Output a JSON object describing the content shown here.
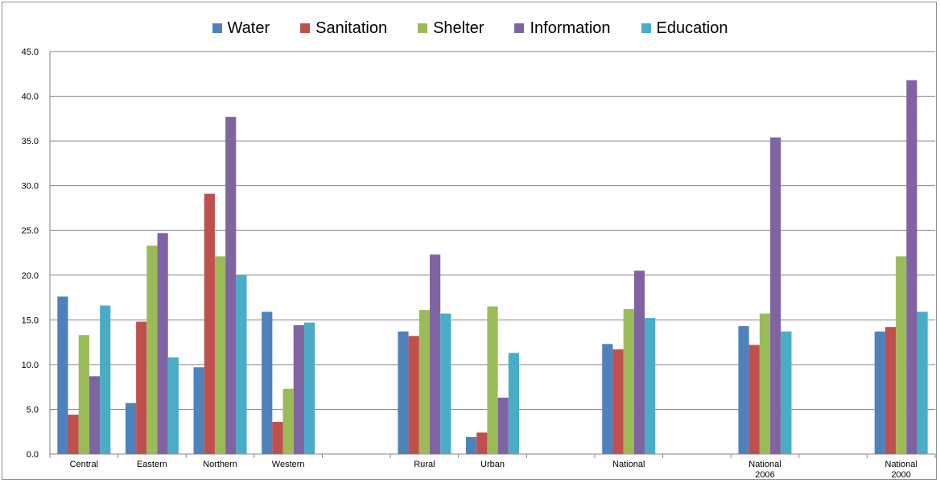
{
  "chart_data": {
    "type": "bar",
    "title": "",
    "xlabel": "",
    "ylabel": "",
    "ylim": [
      0,
      45
    ],
    "yticks": [
      "0.0",
      "5.0",
      "10.0",
      "15.0",
      "20.0",
      "25.0",
      "30.0",
      "35.0",
      "40.0",
      "45.0"
    ],
    "grid": true,
    "legend_position": "top",
    "categories": [
      [
        "Central"
      ],
      [
        "Eastern"
      ],
      [
        "Northern"
      ],
      [
        "Western"
      ],
      [
        ""
      ],
      [
        "Rural"
      ],
      [
        "Urban"
      ],
      [
        ""
      ],
      [
        "National"
      ],
      [
        ""
      ],
      [
        "National",
        "2006"
      ],
      [
        ""
      ],
      [
        "National",
        "2000"
      ]
    ],
    "series": [
      {
        "name": "Water",
        "color": "#4f81bd",
        "values": [
          17.6,
          5.7,
          9.7,
          15.9,
          null,
          13.7,
          1.9,
          null,
          12.3,
          null,
          14.3,
          null,
          13.7
        ]
      },
      {
        "name": "Sanitation",
        "color": "#c0504d",
        "values": [
          4.4,
          14.8,
          29.1,
          3.6,
          null,
          13.2,
          2.4,
          null,
          11.7,
          null,
          12.2,
          null,
          14.2
        ]
      },
      {
        "name": "Shelter",
        "color": "#9bbb59",
        "values": [
          13.3,
          23.3,
          22.1,
          7.3,
          null,
          16.1,
          16.5,
          null,
          16.2,
          null,
          15.7,
          null,
          22.1
        ]
      },
      {
        "name": "Information",
        "color": "#8064a2",
        "values": [
          8.7,
          24.7,
          37.7,
          14.4,
          null,
          22.3,
          6.3,
          null,
          20.5,
          null,
          35.4,
          null,
          41.8
        ]
      },
      {
        "name": "Education",
        "color": "#4bacc6",
        "values": [
          16.6,
          10.8,
          20.0,
          14.7,
          null,
          15.7,
          11.3,
          null,
          15.2,
          null,
          13.7,
          null,
          15.9
        ]
      }
    ]
  }
}
